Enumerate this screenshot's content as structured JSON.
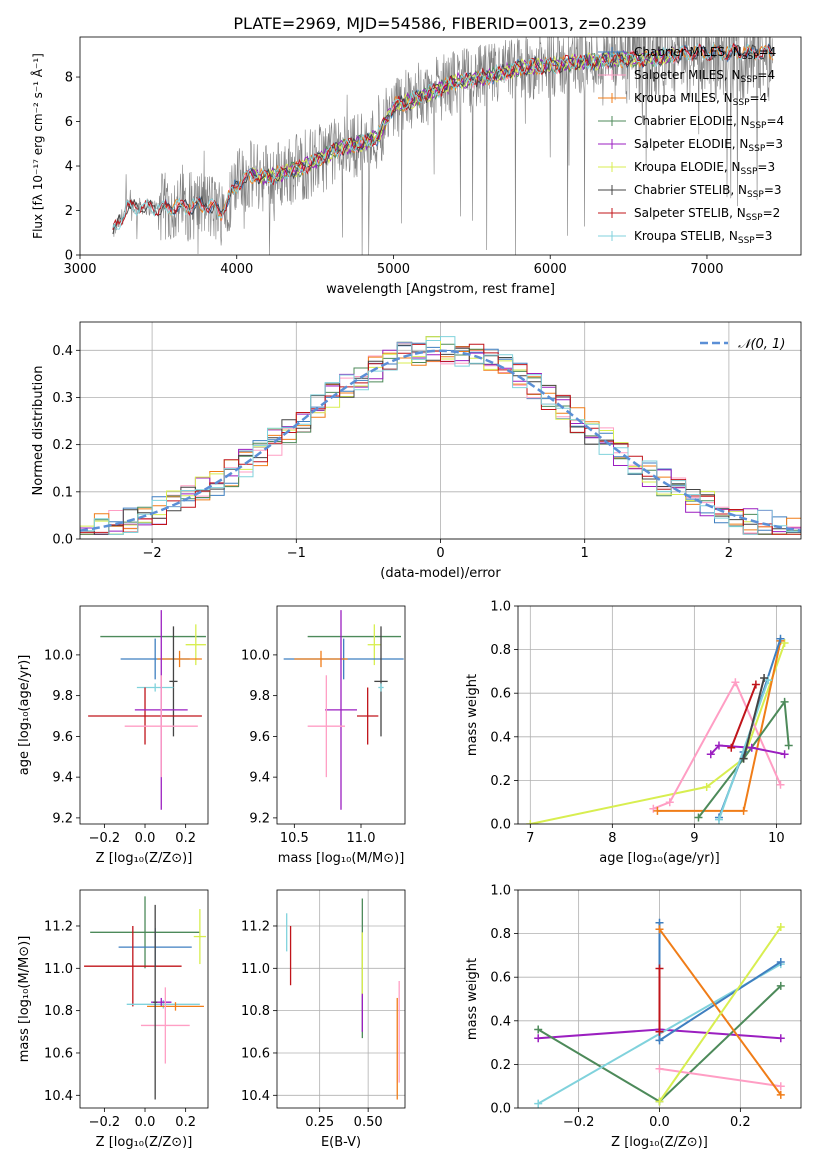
{
  "figure": {
    "title": "PLATE=2969, MJD=54586, FIBERID=0013, z=0.239"
  },
  "colors": {
    "Chabrier MILES": "#3f7fc0",
    "Salpeter MILES": "#ff9ec4",
    "Kroupa MILES": "#f07d18",
    "Chabrier ELODIE": "#4d8a5a",
    "Salpeter ELODIE": "#9b1fc0",
    "Kroupa ELODIE": "#d8ee50",
    "Chabrier STELIB": "#444444",
    "Salpeter STELIB": "#c0141a",
    "Kroupa STELIB": "#80d2dc",
    "data": "#808080",
    "normal": "#5b8fd6",
    "grid": "#b0b0b0"
  },
  "chart_data": [
    {
      "id": "spectrum",
      "type": "line",
      "xlabel": "wavelength [Angstrom, rest frame]",
      "ylabel": "Flux [fλ 10⁻¹⁷ erg cm⁻² s⁻¹ Å⁻¹]",
      "xlim": [
        3000,
        7600
      ],
      "ylim": [
        0,
        9.8
      ],
      "xticks": [
        3000,
        4000,
        5000,
        6000,
        7000
      ],
      "yticks": [
        0,
        2,
        4,
        6,
        8
      ],
      "grid": false,
      "legend_position": "right",
      "legend": [
        {
          "label": "Chabrier MILES, N",
          "sub": "SSP",
          "suffix": "=4",
          "series": "Chabrier MILES"
        },
        {
          "label": "Salpeter MILES, N",
          "sub": "SSP",
          "suffix": "=4",
          "series": "Salpeter MILES"
        },
        {
          "label": "Kroupa MILES, N",
          "sub": "SSP",
          "suffix": "=4",
          "series": "Kroupa MILES"
        },
        {
          "label": "Chabrier ELODIE, N",
          "sub": "SSP",
          "suffix": "=4",
          "series": "Chabrier ELODIE"
        },
        {
          "label": "Salpeter ELODIE, N",
          "sub": "SSP",
          "suffix": "=3",
          "series": "Salpeter ELODIE"
        },
        {
          "label": "Kroupa ELODIE, N",
          "sub": "SSP",
          "suffix": "=3",
          "series": "Kroupa ELODIE"
        },
        {
          "label": "Chabrier STELIB, N",
          "sub": "SSP",
          "suffix": "=3",
          "series": "Chabrier STELIB"
        },
        {
          "label": "Salpeter STELIB, N",
          "sub": "SSP",
          "suffix": "=2",
          "series": "Salpeter STELIB"
        },
        {
          "label": "Kroupa STELIB, N",
          "sub": "SSP",
          "suffix": "=3",
          "series": "Kroupa STELIB"
        }
      ],
      "continuum": {
        "wavelength": [
          3210,
          3300,
          3400,
          3500,
          3600,
          3700,
          3800,
          3900,
          4000,
          4100,
          4200,
          4300,
          4400,
          4500,
          4600,
          4700,
          4800,
          4900,
          5000,
          5100,
          5200,
          5300,
          5400,
          5500,
          5600,
          5700,
          5800,
          5900,
          6000,
          6100,
          6200,
          6300,
          6400,
          6500,
          6600,
          6700,
          6800,
          6900,
          7000,
          7100,
          7200,
          7300,
          7400
        ],
        "flux": [
          1.0,
          2.1,
          2.2,
          2.1,
          2.15,
          2.2,
          2.3,
          1.9,
          3.2,
          3.6,
          3.5,
          3.7,
          3.9,
          4.2,
          4.6,
          4.9,
          5.0,
          5.3,
          6.7,
          6.9,
          7.2,
          7.5,
          7.8,
          7.9,
          8.0,
          8.2,
          8.4,
          8.5,
          8.5,
          8.6,
          8.7,
          8.7,
          8.8,
          8.8,
          8.8,
          8.9,
          9.0,
          9.1,
          9.1,
          9.1,
          9.1,
          9.1,
          9.1
        ]
      },
      "data_noise_range": [
        0,
        9.8
      ]
    },
    {
      "id": "residuals",
      "type": "line",
      "xlabel": "(data-model)/error",
      "ylabel": "Normed distribution",
      "xlim": [
        -2.5,
        2.5
      ],
      "ylim": [
        0,
        0.46
      ],
      "xticks": [
        -2,
        -1,
        0,
        1,
        2
      ],
      "xticklabels": [
        "−2",
        "−1",
        "0",
        "1",
        "2"
      ],
      "yticks": [
        0.0,
        0.1,
        0.2,
        0.3,
        0.4
      ],
      "yticklabels": [
        "0.0",
        "0.1",
        "0.2",
        "0.3",
        "0.4"
      ],
      "grid": true,
      "legend_position": "upper right",
      "legend": [
        {
          "label": "𝒩(0, 1)",
          "series": "normal"
        }
      ],
      "histogram": {
        "bin_edges_range": [
          -2.5,
          2.5
        ],
        "bin_width": 0.1,
        "peak": 0.4
      }
    },
    {
      "id": "age-vs-Z",
      "type": "scatter",
      "xlabel": "Z [log₁₀(Z/Z⊙)]",
      "ylabel": "age  [log₁₀(age/yr)]",
      "xlim": [
        -0.32,
        0.31
      ],
      "ylim": [
        9.17,
        10.24
      ],
      "xticks": [
        -0.2,
        0.0,
        0.2
      ],
      "xticklabels": [
        "−0.2",
        "0.0",
        "0.2"
      ],
      "yticks": [
        9.2,
        9.4,
        9.6,
        9.8,
        10.0
      ],
      "yticklabels": [
        "9.2",
        "9.4",
        "9.6",
        "9.8",
        "10.0"
      ],
      "grid": false,
      "series": [
        {
          "key": "Chabrier ELODIE",
          "x": 0.04,
          "xerr": 0.26,
          "y": 10.09,
          "yerr": 0.0
        },
        {
          "key": "Kroupa ELODIE",
          "x": 0.25,
          "xerr": 0.05,
          "y": 10.05,
          "yerr": 0.1
        },
        {
          "key": "Chabrier MILES",
          "x": 0.05,
          "xerr": 0.17,
          "y": 9.98,
          "yerr": 0.1
        },
        {
          "key": "Kroupa MILES",
          "x": 0.17,
          "xerr": 0.11,
          "y": 9.98,
          "yerr": 0.04
        },
        {
          "key": "Chabrier STELIB",
          "x": 0.14,
          "xerr": 0.02,
          "y": 9.87,
          "yerr": 0.27
        },
        {
          "key": "Kroupa STELIB",
          "x": 0.05,
          "xerr": 0.09,
          "y": 9.84,
          "yerr": 0.02
        },
        {
          "key": "Salpeter STELIB",
          "x": 0.0,
          "xerr": 0.28,
          "y": 9.7,
          "yerr": 0.14
        },
        {
          "key": "Salpeter ELODIE",
          "x": 0.08,
          "xerr": 0.13,
          "y": 9.73,
          "yerr": 0.49
        },
        {
          "key": "Salpeter MILES",
          "x": 0.08,
          "xerr": 0.18,
          "y": 9.65,
          "yerr": 0.25
        }
      ]
    },
    {
      "id": "age-vs-mass",
      "type": "scatter",
      "xlabel": "mass [log₁₀(M/M⊙)]",
      "ylabel": "",
      "xlim": [
        10.37,
        11.33
      ],
      "ylim": [
        9.17,
        10.24
      ],
      "xticks": [
        10.5,
        11.0
      ],
      "xticklabels": [
        "10.5",
        "11.0"
      ],
      "yticks": [
        9.2,
        9.4,
        9.6,
        9.8,
        10.0
      ],
      "yticklabels": [
        "9.2",
        "9.4",
        "9.6",
        "9.8",
        "10.0"
      ],
      "grid": false,
      "series": [
        {
          "key": "Chabrier ELODIE",
          "x": 10.95,
          "xerr": 0.35,
          "y": 10.09,
          "yerr": 0.0
        },
        {
          "key": "Kroupa ELODIE",
          "x": 11.1,
          "xerr": 0.05,
          "y": 10.05,
          "yerr": 0.1
        },
        {
          "key": "Chabrier MILES",
          "x": 10.87,
          "xerr": 0.45,
          "y": 9.98,
          "yerr": 0.1
        },
        {
          "key": "Kroupa MILES",
          "x": 10.7,
          "xerr": 0.2,
          "y": 9.98,
          "yerr": 0.04
        },
        {
          "key": "Chabrier STELIB",
          "x": 11.15,
          "xerr": 0.05,
          "y": 9.87,
          "yerr": 0.27
        },
        {
          "key": "Kroupa STELIB",
          "x": 11.15,
          "xerr": 0.02,
          "y": 9.84,
          "yerr": 0.02
        },
        {
          "key": "Salpeter STELIB",
          "x": 11.05,
          "xerr": 0.08,
          "y": 9.7,
          "yerr": 0.14
        },
        {
          "key": "Salpeter ELODIE",
          "x": 10.85,
          "xerr": 0.12,
          "y": 9.73,
          "yerr": 0.49
        },
        {
          "key": "Salpeter MILES",
          "x": 10.74,
          "xerr": 0.14,
          "y": 9.65,
          "yerr": 0.25
        }
      ]
    },
    {
      "id": "mass-weight-vs-age",
      "type": "line",
      "xlabel": "age  [log₁₀(age/yr)]",
      "ylabel": "mass weight",
      "xlim": [
        6.85,
        10.3
      ],
      "ylim": [
        0,
        1.0
      ],
      "xticks": [
        7,
        8,
        9,
        10
      ],
      "xticklabels": [
        "7",
        "8",
        "9",
        "10"
      ],
      "yticks": [
        0.0,
        0.2,
        0.4,
        0.6,
        0.8,
        1.0
      ],
      "yticklabels": [
        "0.0",
        "0.2",
        "0.4",
        "0.6",
        "0.8",
        "1.0"
      ],
      "grid": true,
      "series": [
        {
          "key": "Kroupa ELODIE",
          "x": [
            7.0,
            9.15,
            9.6,
            10.1
          ],
          "y": [
            0.0,
            0.17,
            0.3,
            0.83
          ]
        },
        {
          "key": "Salpeter MILES",
          "x": [
            8.5,
            8.7,
            9.5,
            10.05
          ],
          "y": [
            0.07,
            0.1,
            0.65,
            0.18
          ]
        },
        {
          "key": "Kroupa MILES",
          "x": [
            8.55,
            9.6,
            10.05
          ],
          "y": [
            0.06,
            0.06,
            0.84
          ]
        },
        {
          "key": "Chabrier ELODIE",
          "x": [
            9.05,
            9.6,
            10.1,
            10.15
          ],
          "y": [
            0.03,
            0.3,
            0.56,
            0.36
          ]
        },
        {
          "key": "Salpeter ELODIE",
          "x": [
            9.2,
            9.3,
            9.7,
            10.1
          ],
          "y": [
            0.32,
            0.36,
            0.35,
            0.32
          ]
        },
        {
          "key": "Salpeter STELIB",
          "x": [
            9.45,
            9.75
          ],
          "y": [
            0.35,
            0.64
          ]
        },
        {
          "key": "Chabrier MILES",
          "x": [
            9.3,
            9.6,
            10.05
          ],
          "y": [
            0.03,
            0.33,
            0.85
          ]
        },
        {
          "key": "Kroupa STELIB",
          "x": [
            9.3,
            9.9
          ],
          "y": [
            0.02,
            0.66
          ]
        },
        {
          "key": "Chabrier STELIB",
          "x": [
            9.6,
            9.85
          ],
          "y": [
            0.3,
            0.67
          ]
        }
      ]
    },
    {
      "id": "mass-vs-Z",
      "type": "scatter",
      "xlabel": "Z [log₁₀(Z/Z⊙)]",
      "ylabel": "mass [log₁₀(M/M⊙)]",
      "xlim": [
        -0.32,
        0.31
      ],
      "ylim": [
        10.34,
        11.37
      ],
      "xticks": [
        -0.2,
        0.0,
        0.2
      ],
      "xticklabels": [
        "−0.2",
        "0.0",
        "0.2"
      ],
      "yticks": [
        10.4,
        10.6,
        10.8,
        11.0,
        11.2
      ],
      "yticklabels": [
        "10.4",
        "10.6",
        "10.8",
        "11.0",
        "11.2"
      ],
      "grid": false,
      "series": [
        {
          "key": "Chabrier ELODIE",
          "x": 0.0,
          "xerr": 0.27,
          "y": 11.17,
          "yerr": 0.17
        },
        {
          "key": "Kroupa ELODIE",
          "x": 0.27,
          "xerr": 0.03,
          "y": 11.15,
          "yerr": 0.13
        },
        {
          "key": "Chabrier MILES",
          "x": 0.05,
          "xerr": 0.18,
          "y": 11.1,
          "yerr": 0.09
        },
        {
          "key": "Salpeter STELIB",
          "x": -0.06,
          "xerr": 0.24,
          "y": 11.01,
          "yerr": 0.19
        },
        {
          "key": "Kroupa STELIB",
          "x": 0.09,
          "xerr": 0.18,
          "y": 10.83,
          "yerr": 0.02
        },
        {
          "key": "Salpeter ELODIE",
          "x": 0.08,
          "xerr": 0.05,
          "y": 10.84,
          "yerr": 0.02
        },
        {
          "key": "Kroupa MILES",
          "x": 0.15,
          "xerr": 0.14,
          "y": 10.82,
          "yerr": 0.02
        },
        {
          "key": "Salpeter MILES",
          "x": 0.1,
          "xerr": 0.12,
          "y": 10.73,
          "yerr": 0.18
        },
        {
          "key": "Chabrier STELIB",
          "x": 0.05,
          "xerr": 0.01,
          "y": 10.84,
          "yerr": 0.46
        }
      ]
    },
    {
      "id": "mass-vs-EBV",
      "type": "scatter",
      "xlabel": "E(B-V)",
      "ylabel": "",
      "xlim": [
        0.03,
        0.69
      ],
      "ylim": [
        10.34,
        11.37
      ],
      "xticks": [
        0.25,
        0.5
      ],
      "xticklabels": [
        "0.25",
        "0.50"
      ],
      "yticks": [
        10.4,
        10.6,
        10.8,
        11.0,
        11.2
      ],
      "yticklabels": [
        "10.4",
        "10.6",
        "10.8",
        "11.0",
        "11.2"
      ],
      "grid": true,
      "series": [
        {
          "key": "Kroupa STELIB",
          "x": 0.08,
          "xerr": 0.0,
          "y": 11.17,
          "yerr": 0.09
        },
        {
          "key": "Salpeter STELIB",
          "x": 0.1,
          "xerr": 0.0,
          "y": 11.06,
          "yerr": 0.14
        },
        {
          "key": "Chabrier ELODIE",
          "x": 0.47,
          "xerr": 0.0,
          "y": 11.0,
          "yerr": 0.33
        },
        {
          "key": "Kroupa ELODIE",
          "x": 0.47,
          "xerr": 0.0,
          "y": 11.02,
          "yerr": 0.15
        },
        {
          "key": "Salpeter ELODIE",
          "x": 0.47,
          "xerr": 0.0,
          "y": 10.79,
          "yerr": 0.09
        },
        {
          "key": "Kroupa MILES",
          "x": 0.65,
          "xerr": 0.0,
          "y": 10.62,
          "yerr": 0.24
        },
        {
          "key": "Salpeter MILES",
          "x": 0.66,
          "xerr": 0.0,
          "y": 10.7,
          "yerr": 0.24
        }
      ]
    },
    {
      "id": "mass-weight-vs-Z",
      "type": "line",
      "xlabel": "Z [log₁₀(Z/Z⊙)]",
      "ylabel": "mass weight",
      "xlim": [
        -0.35,
        0.35
      ],
      "ylim": [
        0,
        1.0
      ],
      "xticks": [
        -0.2,
        0.0,
        0.2
      ],
      "xticklabels": [
        "−0.2",
        "0.0",
        "0.2"
      ],
      "yticks": [
        0.0,
        0.2,
        0.4,
        0.6,
        0.8,
        1.0
      ],
      "yticklabels": [
        "0.0",
        "0.2",
        "0.4",
        "0.6",
        "0.8",
        "1.0"
      ],
      "grid": true,
      "series": [
        {
          "key": "Salpeter ELODIE",
          "x": [
            -0.3,
            0.0,
            0.3
          ],
          "y": [
            0.32,
            0.36,
            0.32
          ]
        },
        {
          "key": "Chabrier ELODIE",
          "x": [
            -0.3,
            0.0,
            0.3
          ],
          "y": [
            0.36,
            0.03,
            0.56
          ]
        },
        {
          "key": "Kroupa STELIB",
          "x": [
            -0.3,
            0.3
          ],
          "y": [
            0.02,
            0.66
          ]
        },
        {
          "key": "Chabrier MILES",
          "x": [
            0.0,
            0.0,
            0.3
          ],
          "y": [
            0.85,
            0.31,
            0.67
          ]
        },
        {
          "key": "Salpeter MILES",
          "x": [
            0.0,
            0.3
          ],
          "y": [
            0.18,
            0.1
          ]
        },
        {
          "key": "Kroupa MILES",
          "x": [
            0.0,
            0.3
          ],
          "y": [
            0.82,
            0.06
          ]
        },
        {
          "key": "Salpeter STELIB",
          "x": [
            0.0,
            0.0
          ],
          "y": [
            0.35,
            0.64
          ]
        },
        {
          "key": "Kroupa ELODIE",
          "x": [
            0.0,
            0.3
          ],
          "y": [
            0.03,
            0.83
          ]
        }
      ]
    }
  ]
}
